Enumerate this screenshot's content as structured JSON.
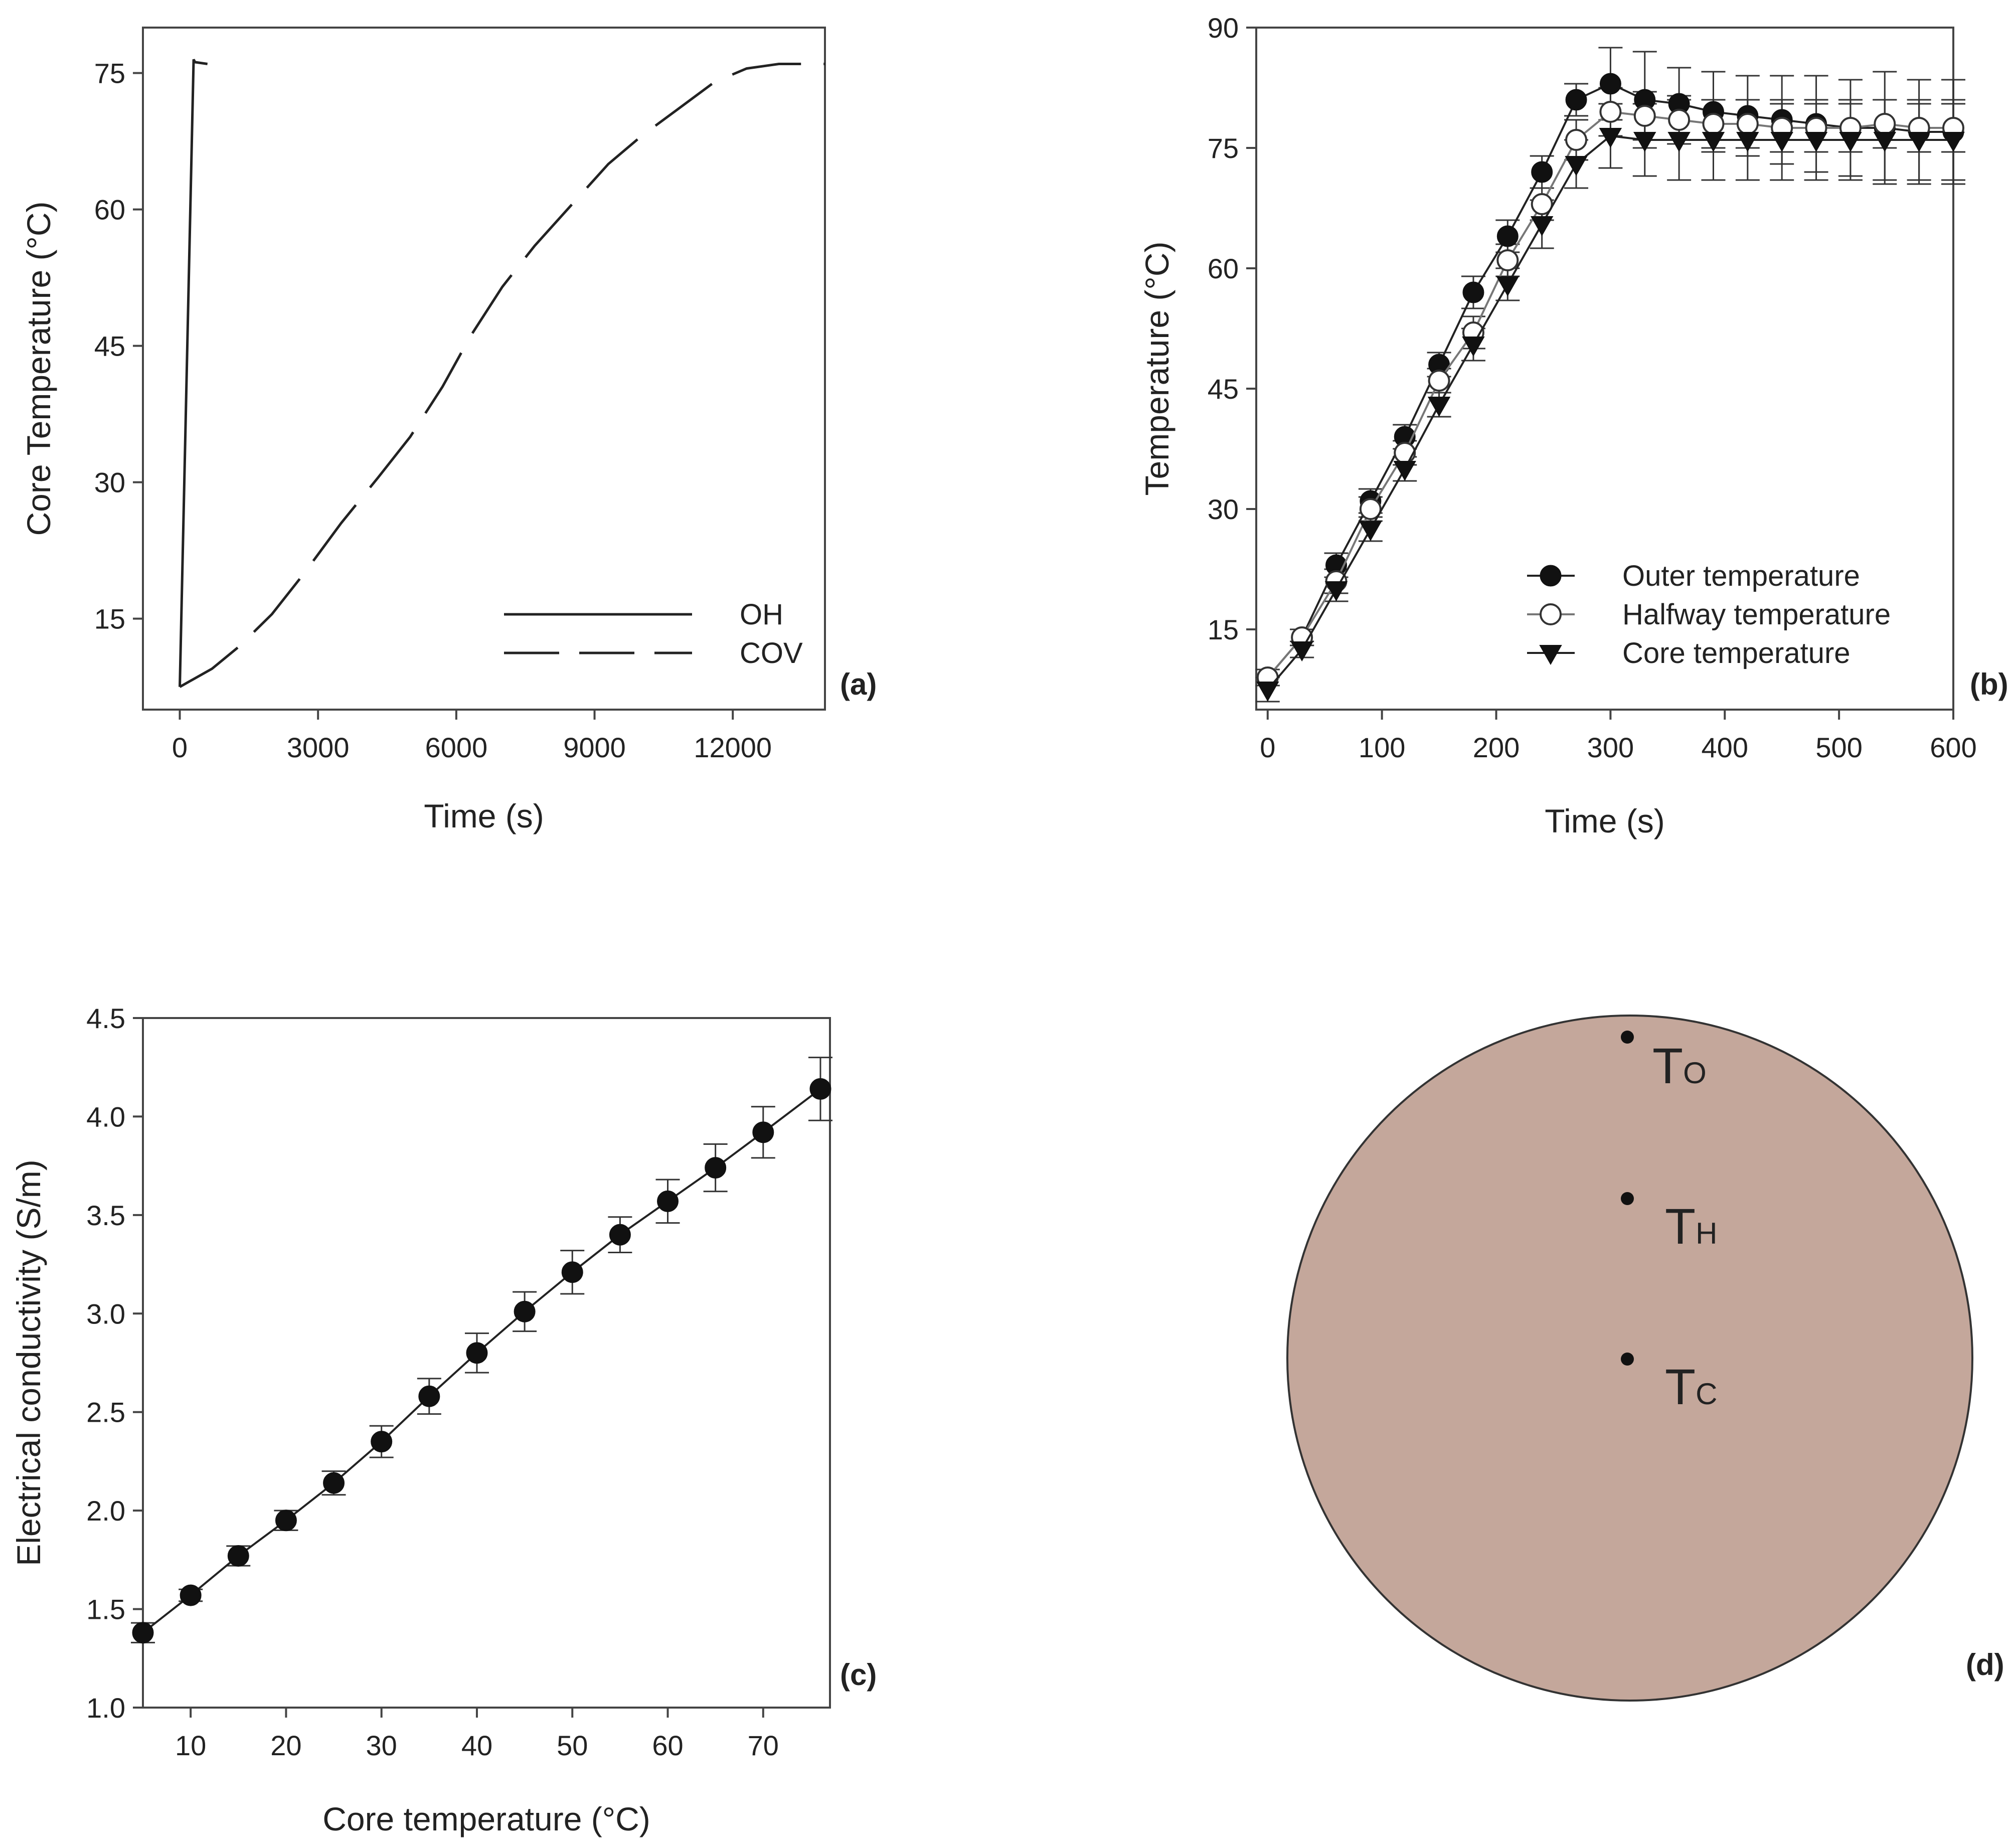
{
  "figure": {
    "colors": {
      "axis": "#444444",
      "line": "#222222",
      "grid": "#888888",
      "disk_fill": "#c4a79b",
      "disk_edge": "#333333"
    }
  },
  "chart_data": [
    {
      "panel": "a",
      "type": "line",
      "panel_label": "(a)",
      "xlabel": "Time (s)",
      "ylabel": "Core Temperature (°C)",
      "xlim": [
        -800,
        14000
      ],
      "ylim": [
        5,
        80
      ],
      "xticks": [
        0,
        3000,
        6000,
        9000,
        12000
      ],
      "yticks": [
        15,
        30,
        45,
        60,
        75
      ],
      "xtick_labels": [
        "0",
        "3000",
        "6000",
        "9000",
        "12000"
      ],
      "ytick_labels": [
        "15",
        "30",
        "45",
        "60",
        "75"
      ],
      "legend": {
        "position": "bottom-right",
        "entries": [
          "OH",
          "COV"
        ]
      },
      "series": [
        {
          "name": "OH",
          "style": "solid",
          "x": [
            0,
            300,
            330,
            600
          ],
          "y": [
            7.5,
            76.5,
            76.2,
            76
          ]
        },
        {
          "name": "COV",
          "style": "dashed",
          "x": [
            0,
            700,
            1300,
            2000,
            2700,
            3500,
            4300,
            5000,
            5700,
            6300,
            7000,
            7700,
            8500,
            9300,
            10000,
            10800,
            11600,
            12300,
            13000,
            14000
          ],
          "y": [
            7.5,
            9.5,
            12,
            15.5,
            20,
            25.5,
            30.5,
            35,
            40.5,
            46,
            51.5,
            56,
            60.5,
            65,
            68,
            71,
            74,
            75.5,
            76,
            76
          ]
        }
      ]
    },
    {
      "panel": "b",
      "type": "line",
      "panel_label": "(b)",
      "xlabel": "Time (s)",
      "ylabel": "Temperature (°C)",
      "xlim": [
        -10,
        600
      ],
      "ylim": [
        5,
        90
      ],
      "xticks": [
        0,
        100,
        200,
        300,
        400,
        500,
        600
      ],
      "yticks": [
        15,
        30,
        45,
        60,
        75,
        90
      ],
      "xtick_labels": [
        "0",
        "100",
        "200",
        "300",
        "400",
        "500",
        "600"
      ],
      "ytick_labels": [
        "15",
        "30",
        "45",
        "60",
        "75",
        "90"
      ],
      "legend": {
        "position": "bottom-right"
      },
      "x": [
        0,
        30,
        60,
        90,
        120,
        150,
        180,
        210,
        240,
        270,
        300,
        330,
        360,
        390,
        420,
        450,
        480,
        510,
        540,
        570,
        600
      ],
      "series": [
        {
          "name": "Outer temperature",
          "marker": "filled-circle",
          "values": [
            9,
            14,
            23,
            31,
            39,
            48,
            57,
            64,
            72,
            81,
            83,
            81,
            80.5,
            79.5,
            79,
            78.5,
            78,
            77.5,
            77.5,
            77,
            77
          ],
          "errors": [
            1,
            1,
            1.5,
            1.5,
            1.5,
            1.5,
            2,
            2,
            2,
            2,
            4.5,
            6,
            4.5,
            5,
            5,
            5.5,
            6,
            6,
            7,
            6.5,
            6.5
          ]
        },
        {
          "name": "Halfway temperature",
          "marker": "open-circle",
          "values": [
            9,
            14,
            21,
            30,
            37,
            46,
            52,
            61,
            68,
            76,
            79.5,
            79,
            78.5,
            78,
            78,
            77.5,
            77.5,
            77.5,
            78,
            77.5,
            77.5
          ],
          "errors": [
            1,
            1,
            1.5,
            1.5,
            1.5,
            1.5,
            2,
            2,
            2,
            2.5,
            3,
            3,
            3,
            3,
            3,
            3,
            3,
            3,
            3,
            3,
            3
          ]
        },
        {
          "name": "Core temperature",
          "marker": "filled-triangle-down",
          "values": [
            7.5,
            12.5,
            20,
            27.5,
            35,
            43,
            50.5,
            58,
            65.5,
            73,
            76.5,
            76,
            76,
            76,
            76,
            76,
            76,
            76,
            76,
            76,
            76
          ],
          "errors": [
            1.5,
            1,
            1.5,
            1.5,
            1.5,
            1.5,
            2,
            2,
            3,
            3,
            4,
            4.5,
            5,
            5,
            5,
            5,
            5,
            5,
            5,
            5,
            5
          ]
        }
      ]
    },
    {
      "panel": "c",
      "type": "line",
      "panel_label": "(c)",
      "xlabel": "Core temperature (°C)",
      "ylabel": "Electrical conductivity (S/m)",
      "xlim": [
        5,
        77
      ],
      "ylim": [
        1.0,
        4.5
      ],
      "xticks": [
        10,
        20,
        30,
        40,
        50,
        60,
        70
      ],
      "yticks": [
        1.0,
        1.5,
        2.0,
        2.5,
        3.0,
        3.5,
        4.0,
        4.5
      ],
      "xtick_labels": [
        "10",
        "20",
        "30",
        "40",
        "50",
        "60",
        "70"
      ],
      "ytick_labels": [
        "1.0",
        "1.5",
        "2.0",
        "2.5",
        "3.0",
        "3.5",
        "4.0",
        "4.5"
      ],
      "series": [
        {
          "name": "Electrical conductivity",
          "marker": "filled-circle",
          "x": [
            5,
            10,
            15,
            20,
            25,
            30,
            35,
            40,
            45,
            50,
            55,
            60,
            65,
            70,
            76
          ],
          "values": [
            1.38,
            1.57,
            1.77,
            1.95,
            2.14,
            2.35,
            2.58,
            2.8,
            3.01,
            3.21,
            3.4,
            3.57,
            3.74,
            3.92,
            4.14
          ],
          "errors": [
            0.05,
            0.03,
            0.05,
            0.05,
            0.06,
            0.08,
            0.09,
            0.1,
            0.1,
            0.11,
            0.09,
            0.11,
            0.12,
            0.13,
            0.16
          ]
        }
      ]
    }
  ],
  "panel_d": {
    "panel_label": "(d)",
    "sensors": [
      {
        "main": "T",
        "sub": "O"
      },
      {
        "main": "T",
        "sub": "H"
      },
      {
        "main": "T",
        "sub": "C"
      }
    ]
  }
}
